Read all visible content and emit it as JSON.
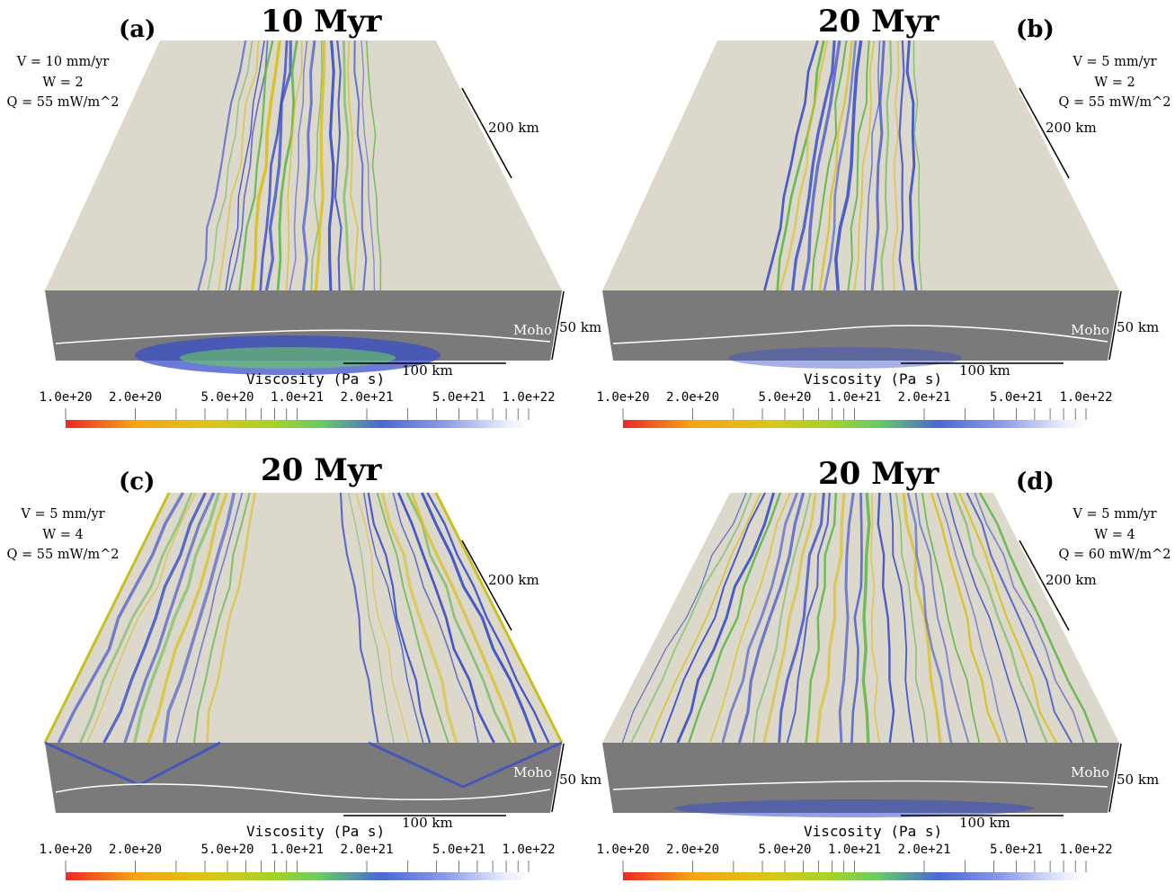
{
  "colorbar_title": "Viscosity (Pa s)",
  "colorbar_tick_labels": [
    "1.0e+20",
    "2.0e+20",
    "5.0e+20",
    "1.0e+21",
    "2.0e+21",
    "5.0e+21",
    "1.0e+22"
  ],
  "scale_labels": {
    "horizontal_depth": "200 km",
    "vertical": "50 km",
    "cross_section": "100 km",
    "moho": "Moho"
  },
  "colors": {
    "surface": "#dcd8cc",
    "cross_section": "#7a7a7a",
    "shear_band_low": "#d9c020",
    "shear_band_mid": "#5fb84c",
    "shear_band_high": "#3a4fc8"
  },
  "panels": [
    {
      "letter": "(a)",
      "time": "10 Myr",
      "params": [
        "V = 10 mm/yr",
        "W = 2",
        "Q = 55 mW/m^2"
      ]
    },
    {
      "letter": "(b)",
      "time": "20 Myr",
      "params": [
        "V = 5 mm/yr",
        "W = 2",
        "Q = 55 mW/m^2"
      ]
    },
    {
      "letter": "(c)",
      "time": "20 Myr",
      "params": [
        "V = 5 mm/yr",
        "W = 4",
        "Q = 55 mW/m^2"
      ]
    },
    {
      "letter": "(d)",
      "time": "20 Myr",
      "params": [
        "V = 5 mm/yr",
        "W = 4",
        "Q = 60 mW/m^2"
      ]
    }
  ]
}
